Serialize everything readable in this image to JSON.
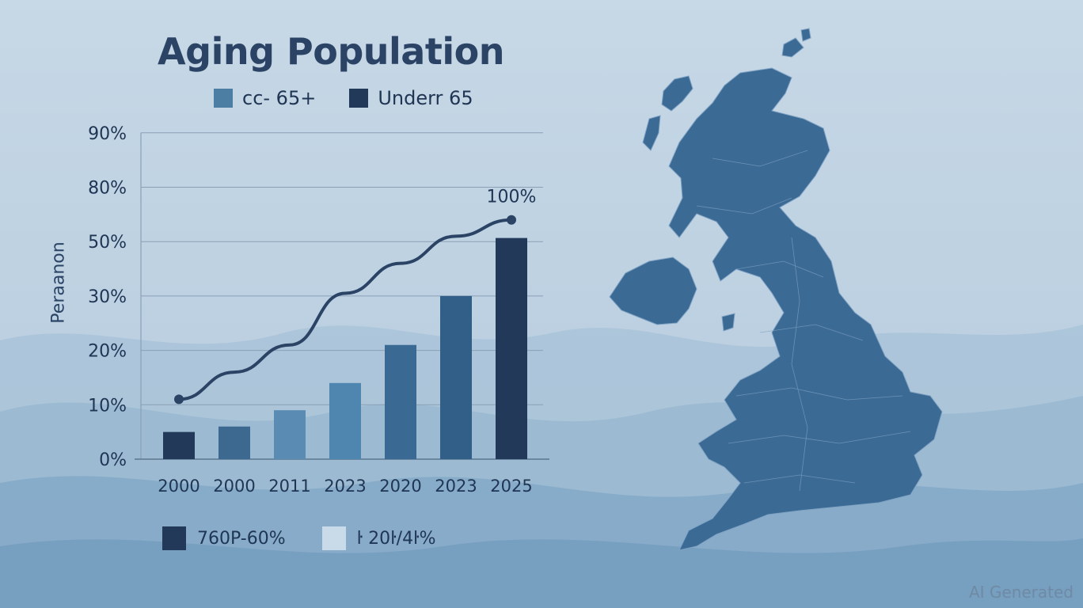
{
  "page": {
    "watermark": "AI Generated"
  },
  "colors": {
    "series_65_plus": "#4c7ea3",
    "series_under_65": "#23395a",
    "line": "#2b4466",
    "grid": "#8aa0b6",
    "map": "#3b6a95"
  },
  "chart_data": {
    "type": "bar",
    "title": "Aging Population",
    "ylabel": "Peraanon",
    "xlabel": "",
    "categories": [
      "2000",
      "2000",
      "2011",
      "2023",
      "2020",
      "2023",
      "2025"
    ],
    "y_ticks": [
      "0%",
      "10%",
      "20%",
      "30%",
      "50%",
      "80%",
      "90%"
    ],
    "grid": true,
    "legend_top": [
      {
        "label": "cc- 65+",
        "color": "#4c7ea3"
      },
      {
        "label": "Underr 65",
        "color": "#23395a"
      }
    ],
    "legend_bottom": [
      {
        "label": "760P-60%",
        "color": "#23395a"
      },
      {
        "label": "ŀ 20ŀ/4ŀ%",
        "color": "#c9dbe8"
      }
    ],
    "series": [
      {
        "values": [
          5,
          6,
          9,
          14,
          21,
          30,
          52
        ]
      },
      {
        "values": [
          11,
          16,
          21,
          31,
          42,
          53,
          62
        ]
      }
    ],
    "bar_colors": [
      "#23395a",
      "#3d6890",
      "#5a8cb3",
      "#4f86b0",
      "#3a6a94",
      "#325f87",
      "#23395a"
    ],
    "line_end_label": "100%"
  }
}
